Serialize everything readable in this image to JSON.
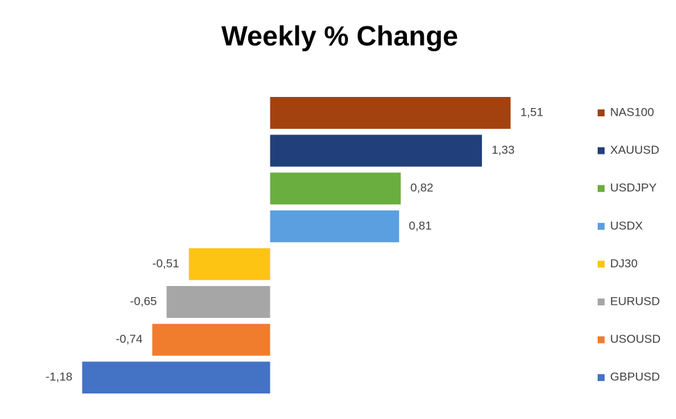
{
  "chart_data": {
    "type": "hbar",
    "title": "Weekly % Change",
    "categories": [
      "NAS100",
      "XAUUSD",
      "USDJPY",
      "USDX",
      "DJ30",
      "EURUSD",
      "USOUSD",
      "GBPUSD"
    ],
    "values": [
      1.51,
      1.33,
      0.82,
      0.81,
      -0.51,
      -0.65,
      -0.74,
      -1.18
    ],
    "value_labels": [
      "1,51",
      "1,33",
      "0,82",
      "0,81",
      "-0,51",
      "-0,65",
      "-0,74",
      "-1,18"
    ],
    "colors": [
      "#a3420f",
      "#213f7a",
      "#6aae40",
      "#5b9fe0",
      "#fdc414",
      "#a6a6a6",
      "#f07c2e",
      "#4472c4"
    ],
    "xlim": [
      -1.5,
      2
    ]
  }
}
